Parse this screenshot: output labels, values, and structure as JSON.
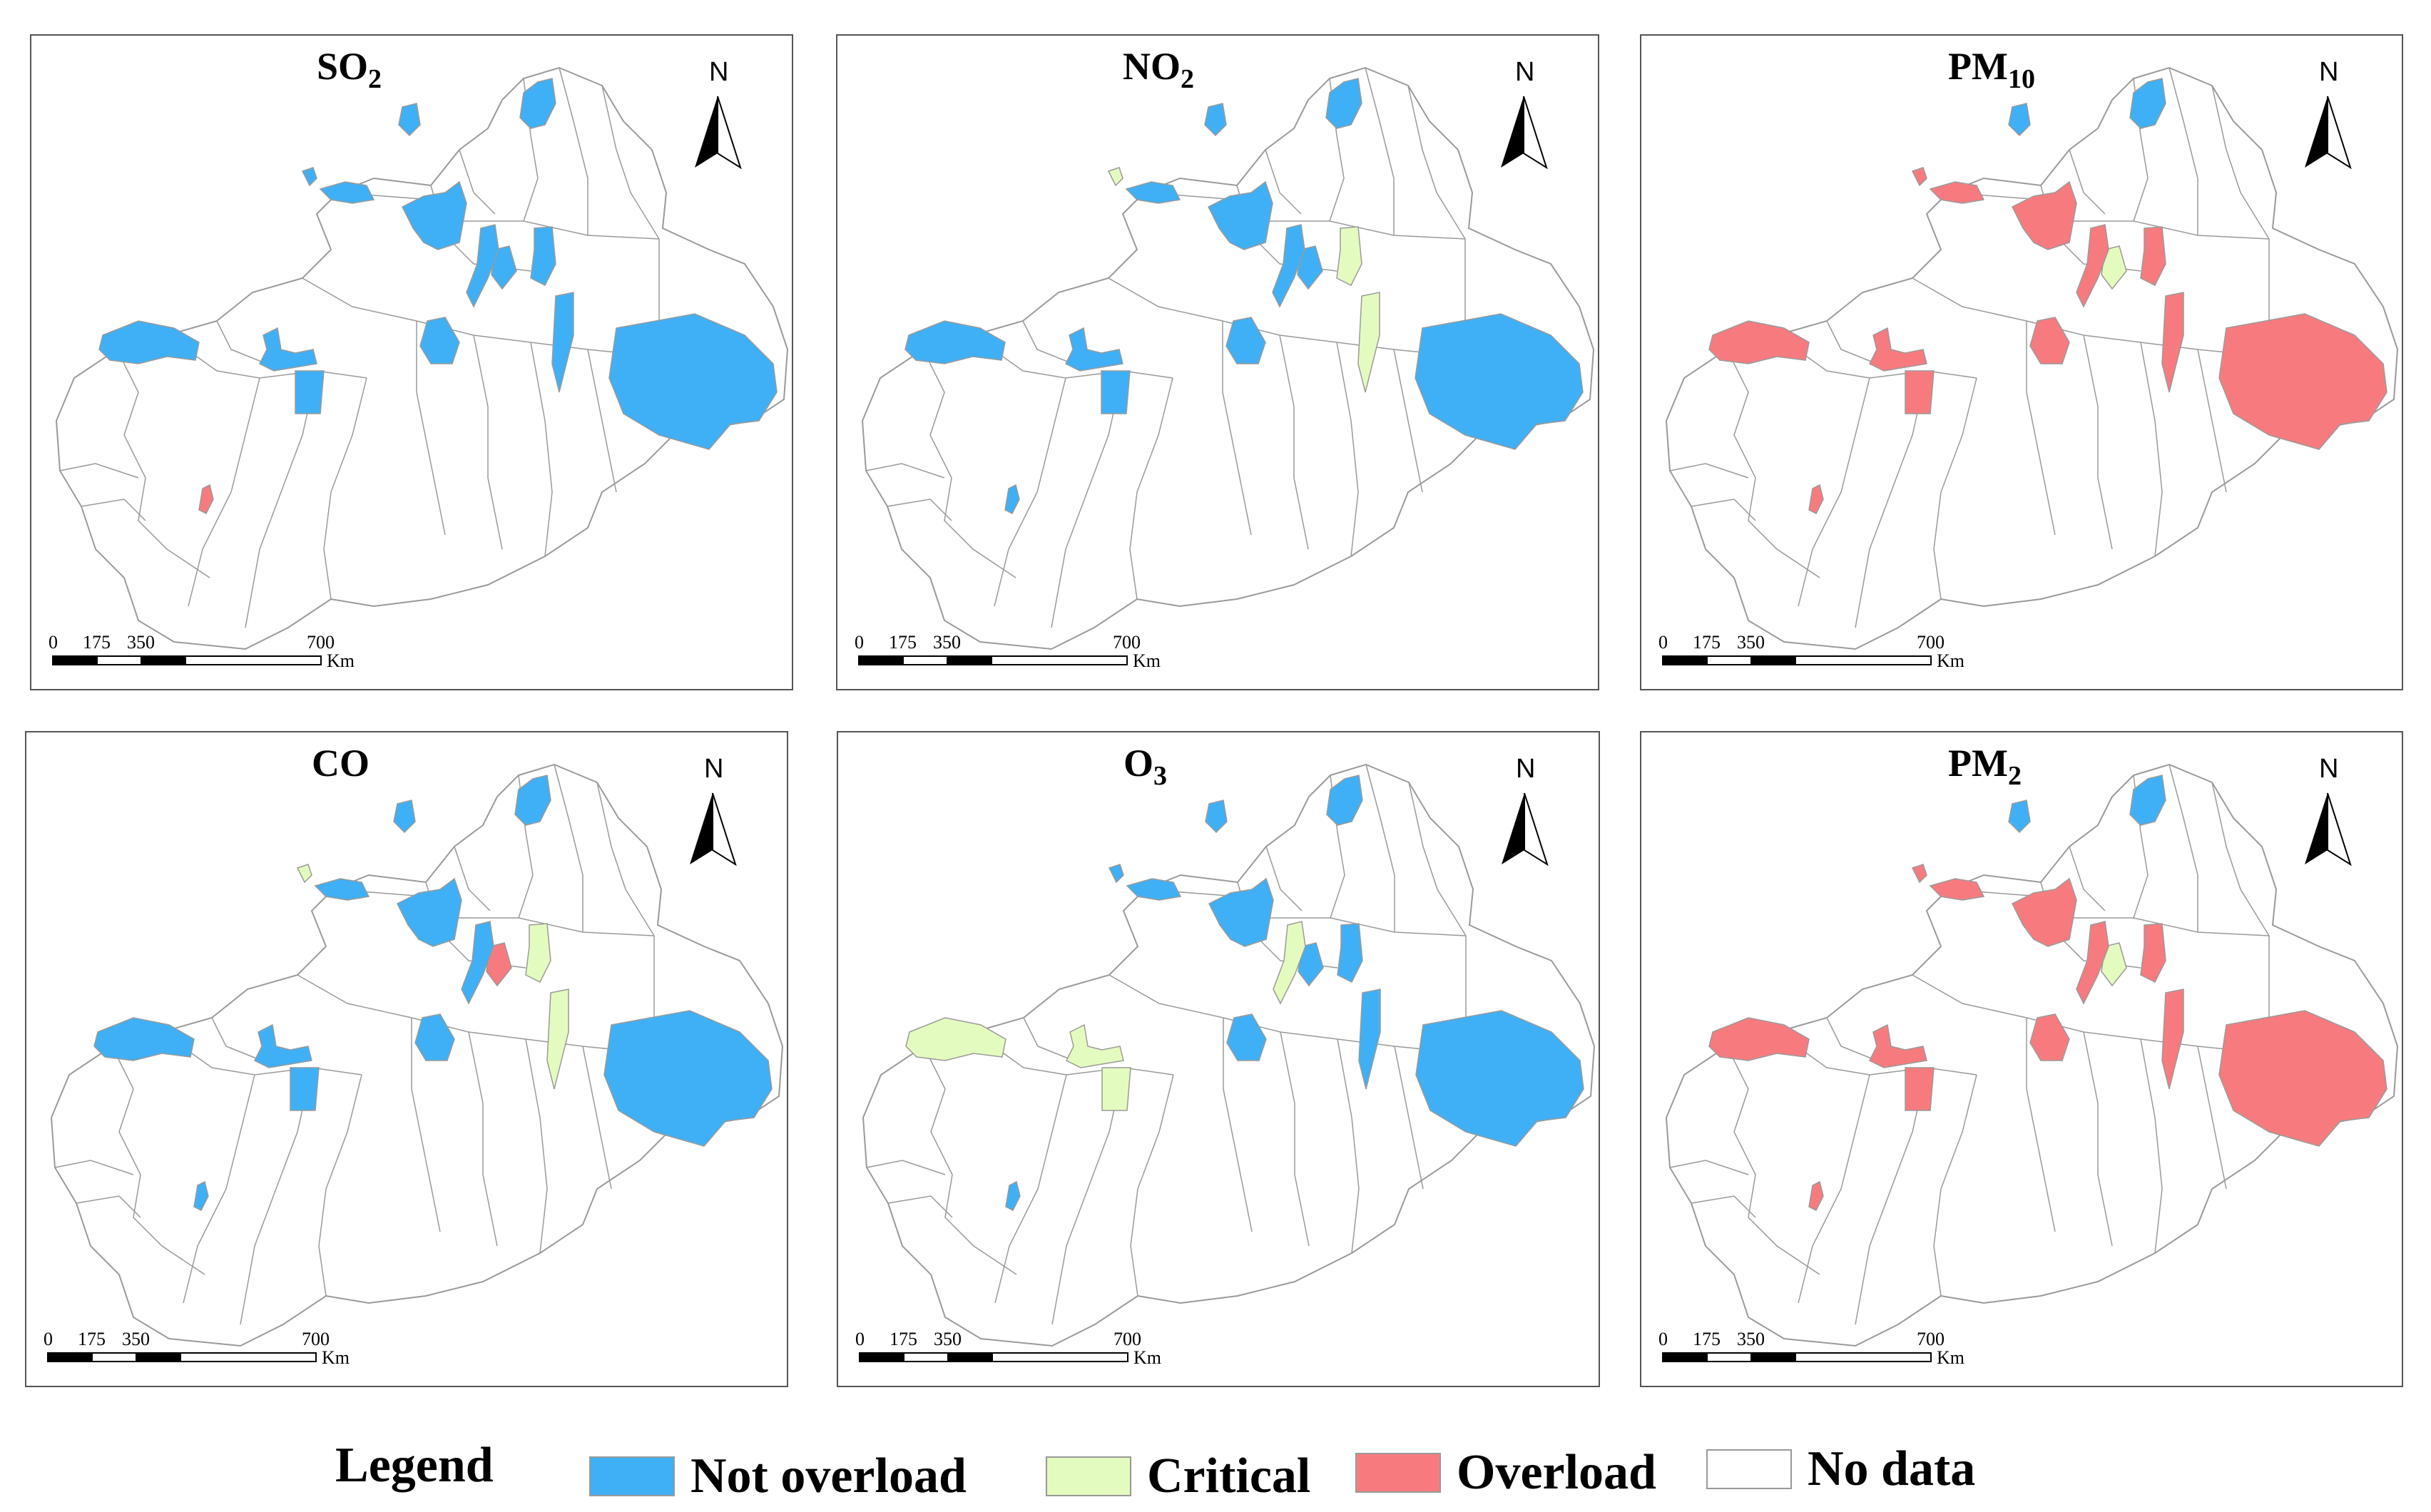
{
  "colors": {
    "not_overload": "#3fb0f5",
    "critical": "#e4fbbf",
    "overload": "#f77b7e",
    "no_data": "#ffffff",
    "boundary": "#9a9a9a"
  },
  "north_label": "N",
  "scale_bar": {
    "ticks": [
      "0",
      "175",
      "350",
      "700"
    ],
    "unit": "Km"
  },
  "panels": [
    {
      "title_main": "SO",
      "title_sub": "2",
      "regions": {
        "r_nw": "not_overload",
        "r_w1": "not_overload",
        "r_w2": "not_overload",
        "r_c1": "not_overload",
        "r_c2": "not_overload",
        "r_c3": "not_overload",
        "r_n1": "not_overload",
        "r_n2": "not_overload",
        "r_n3": "not_overload",
        "r_e1": "not_overload",
        "r_e2": "not_overload",
        "r_e3": "not_overload",
        "r_sw": "overload",
        "r_s1": "not_overload",
        "r_x1": "not_overload"
      }
    },
    {
      "title_main": "NO",
      "title_sub": "2",
      "regions": {
        "r_nw": "not_overload",
        "r_w1": "not_overload",
        "r_w2": "not_overload",
        "r_c1": "not_overload",
        "r_c2": "not_overload",
        "r_c3": "not_overload",
        "r_n1": "not_overload",
        "r_n2": "not_overload",
        "r_n3": "critical",
        "r_e1": "critical",
        "r_e2": "not_overload",
        "r_e3": "not_overload",
        "r_sw": "not_overload",
        "r_s1": "not_overload",
        "r_x1": "critical"
      }
    },
    {
      "title_main": "PM",
      "title_sub": "10",
      "regions": {
        "r_nw": "overload",
        "r_w1": "overload",
        "r_w2": "overload",
        "r_c1": "overload",
        "r_c2": "overload",
        "r_c3": "overload",
        "r_n1": "not_overload",
        "r_n2": "not_overload",
        "r_n3": "overload",
        "r_e1": "overload",
        "r_e2": "overload",
        "r_e3": "critical",
        "r_sw": "overload",
        "r_s1": "overload",
        "r_x1": "overload"
      }
    },
    {
      "title_main": "CO",
      "title_sub": "",
      "regions": {
        "r_nw": "not_overload",
        "r_w1": "not_overload",
        "r_w2": "not_overload",
        "r_c1": "not_overload",
        "r_c2": "not_overload",
        "r_c3": "not_overload",
        "r_n1": "not_overload",
        "r_n2": "not_overload",
        "r_n3": "critical",
        "r_e1": "critical",
        "r_e2": "not_overload",
        "r_e3": "overload",
        "r_sw": "not_overload",
        "r_s1": "not_overload",
        "r_x1": "critical"
      }
    },
    {
      "title_main": "O",
      "title_sub": "3",
      "regions": {
        "r_nw": "critical",
        "r_w1": "critical",
        "r_w2": "critical",
        "r_c1": "not_overload",
        "r_c2": "not_overload",
        "r_c3": "not_overload",
        "r_n1": "not_overload",
        "r_n2": "not_overload",
        "r_n3": "not_overload",
        "r_e1": "not_overload",
        "r_e2": "not_overload",
        "r_e3": "not_overload",
        "r_sw": "not_overload",
        "r_s1": "critical",
        "r_x1": "not_overload"
      }
    },
    {
      "title_main": "PM",
      "title_sub": "2",
      "regions": {
        "r_nw": "overload",
        "r_w1": "overload",
        "r_w2": "overload",
        "r_c1": "overload",
        "r_c2": "overload",
        "r_c3": "overload",
        "r_n1": "not_overload",
        "r_n2": "not_overload",
        "r_n3": "overload",
        "r_e1": "overload",
        "r_e2": "overload",
        "r_e3": "critical",
        "r_sw": "overload",
        "r_s1": "overload",
        "r_x1": "overload"
      }
    }
  ],
  "legend": {
    "title": "Legend",
    "items": [
      {
        "label": "Not overload",
        "status": "not_overload"
      },
      {
        "label": "Critical",
        "status": "critical"
      },
      {
        "label": "Overload",
        "status": "overload"
      },
      {
        "label": "No data",
        "status": "no_data"
      }
    ]
  }
}
